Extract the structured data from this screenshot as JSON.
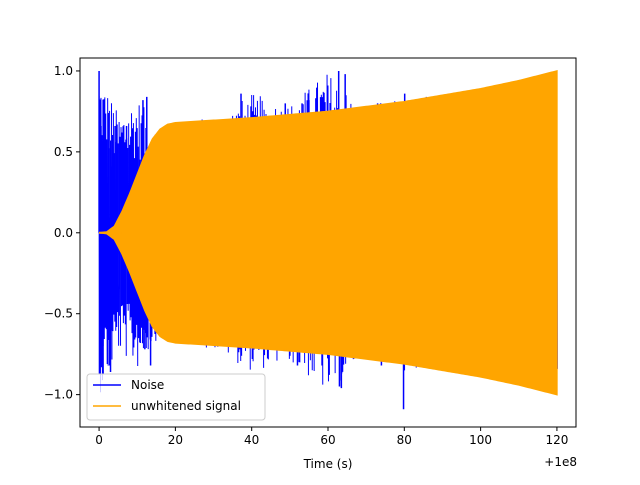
{
  "chart_data": {
    "type": "line",
    "title": "",
    "xlabel": "Time (s)",
    "ylabel": "",
    "x_offset_label": "+1e8",
    "xlim": [
      -5,
      125
    ],
    "ylim": [
      -1.2,
      1.08
    ],
    "x_ticks": [
      0,
      20,
      40,
      60,
      80,
      100,
      120
    ],
    "x_tick_labels": [
      "0",
      "20",
      "40",
      "60",
      "80",
      "100",
      "120"
    ],
    "y_ticks": [
      -1.0,
      -0.5,
      0.0,
      0.5,
      1.0
    ],
    "y_tick_labels": [
      "−1.0",
      "−0.5",
      "0.0",
      "0.5",
      "1.0"
    ],
    "grid": false,
    "legend_position": "lower-left",
    "series": [
      {
        "name": "Noise",
        "color": "#0000ff",
        "x": [
          0,
          5,
          10,
          15,
          20,
          30,
          40,
          50,
          60,
          70,
          80,
          90,
          100,
          110,
          120
        ],
        "envelope": [
          1.0,
          0.74,
          0.84,
          0.66,
          0.68,
          0.72,
          0.86,
          0.8,
          1.0,
          0.76,
          0.84,
          0.86,
          0.9,
          0.94,
          1.0
        ],
        "spikes": [
          {
            "x": 0.0,
            "y": 1.0
          },
          {
            "x": 0.1,
            "y": -0.87
          },
          {
            "x": 0.5,
            "y": 0.66
          },
          {
            "x": 1.0,
            "y": -0.7
          },
          {
            "x": 2.4,
            "y": 0.74
          },
          {
            "x": 2.8,
            "y": -0.82
          },
          {
            "x": 3.0,
            "y": -0.86
          },
          {
            "x": 4.2,
            "y": 0.66
          },
          {
            "x": 7.2,
            "y": 0.66
          },
          {
            "x": 9.0,
            "y": -0.58
          },
          {
            "x": 11.5,
            "y": 0.82
          },
          {
            "x": 12.0,
            "y": -0.72
          },
          {
            "x": 12.5,
            "y": 0.84
          },
          {
            "x": 13.5,
            "y": -0.82
          },
          {
            "x": 36.8,
            "y": 0.72
          },
          {
            "x": 36.9,
            "y": -0.72
          },
          {
            "x": 37.2,
            "y": 0.86
          },
          {
            "x": 37.3,
            "y": -0.76
          },
          {
            "x": 48.8,
            "y": 0.8
          },
          {
            "x": 49.0,
            "y": -0.72
          },
          {
            "x": 50.0,
            "y": -0.76
          },
          {
            "x": 52.0,
            "y": -0.82
          },
          {
            "x": 53.2,
            "y": 0.8
          },
          {
            "x": 55.0,
            "y": 0.82
          },
          {
            "x": 62.8,
            "y": 1.0
          },
          {
            "x": 63.0,
            "y": -0.95
          },
          {
            "x": 63.5,
            "y": -0.96
          },
          {
            "x": 64.5,
            "y": 0.98
          },
          {
            "x": 65.0,
            "y": -0.74
          },
          {
            "x": 73.0,
            "y": 0.8
          },
          {
            "x": 73.8,
            "y": 0.8
          },
          {
            "x": 74.0,
            "y": -0.82
          },
          {
            "x": 79.8,
            "y": -1.09
          },
          {
            "x": 80.0,
            "y": -0.85
          },
          {
            "x": 80.1,
            "y": 0.86
          }
        ]
      },
      {
        "name": "unwhitened signal",
        "color": "#ffa500",
        "x": [
          0,
          2,
          4,
          6,
          8,
          10,
          12,
          14,
          16,
          18,
          20,
          30,
          40,
          50,
          60,
          70,
          80,
          90,
          100,
          110,
          120
        ],
        "envelope": [
          0.0,
          0.005,
          0.04,
          0.13,
          0.24,
          0.36,
          0.48,
          0.58,
          0.64,
          0.67,
          0.68,
          0.695,
          0.71,
          0.73,
          0.75,
          0.78,
          0.81,
          0.85,
          0.89,
          0.94,
          1.0
        ]
      }
    ]
  }
}
